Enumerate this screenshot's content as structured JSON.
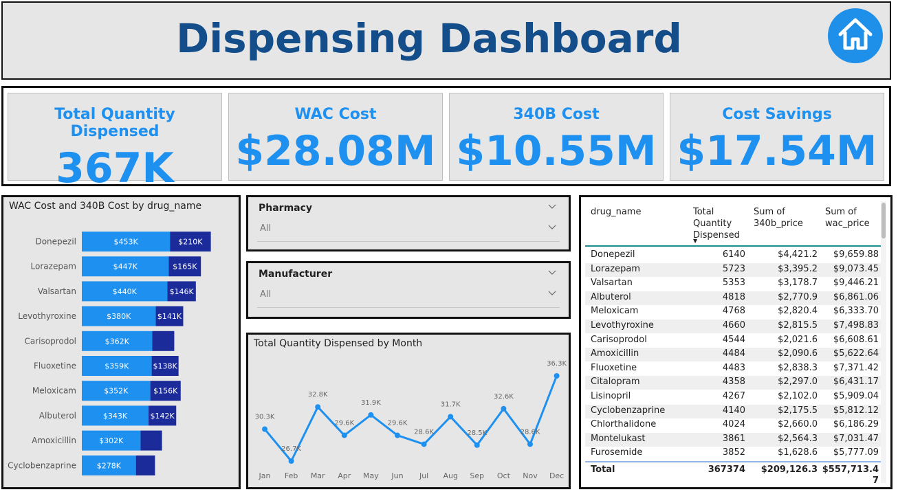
{
  "header": {
    "title": "Dispensing Dashboard",
    "home_icon": "home-icon"
  },
  "kpis": [
    {
      "label": "Total Quantity Dispensed",
      "value": "367K"
    },
    {
      "label": "WAC Cost",
      "value": "$28.08M"
    },
    {
      "label": "340B Cost",
      "value": "$10.55M"
    },
    {
      "label": "Cost Savings",
      "value": "$17.54M"
    }
  ],
  "colors": {
    "wac": "#1e90f0",
    "cost340b": "#1c2b9a",
    "line": "#1e90f0",
    "title": "#134e8a"
  },
  "slicers": [
    {
      "label": "Pharmacy",
      "value": "All"
    },
    {
      "label": "Manufacturer",
      "value": "All"
    }
  ],
  "chart_data": [
    {
      "type": "bar",
      "stacked": true,
      "orientation": "horizontal",
      "title": "WAC Cost and 340B Cost by drug_name",
      "categories": [
        "Donepezil",
        "Lorazepam",
        "Valsartan",
        "Levothyroxine",
        "Carisoprodol",
        "Fluoxetine",
        "Meloxicam",
        "Albuterol",
        "Amoxicillin",
        "Cyclobenzaprine"
      ],
      "series": [
        {
          "values": [
            453,
            447,
            440,
            380,
            362,
            359,
            352,
            343,
            302,
            278
          ],
          "labels": [
            "$453K",
            "$447K",
            "$440K",
            "$380K",
            "$362K",
            "$359K",
            "$352K",
            "$343K",
            "$302K",
            "$278K"
          ]
        },
        {
          "values": [
            210,
            165,
            146,
            141,
            113,
            138,
            156,
            142,
            110,
            98
          ],
          "labels": [
            "$210K",
            "$165K",
            "$146K",
            "$141K",
            "",
            "$138K",
            "$156K",
            "$142K",
            "",
            ""
          ]
        }
      ]
    },
    {
      "type": "line",
      "title": "Total Quantity Dispensed by Month",
      "categories": [
        "Jan",
        "Feb",
        "Mar",
        "Apr",
        "May",
        "Jun",
        "Jul",
        "Aug",
        "Sep",
        "Oct",
        "Nov",
        "Dec"
      ],
      "values": [
        30.3,
        26.7,
        32.8,
        29.6,
        31.9,
        29.6,
        28.6,
        31.7,
        28.5,
        32.6,
        28.6,
        36.3
      ],
      "labels": [
        "30.3K",
        "26.7K",
        "32.8K",
        "29.6K",
        "31.9K",
        "29.6K",
        "28.6K",
        "31.7K",
        "28.5K",
        "32.6K",
        "28.6K",
        "36.3K"
      ],
      "ylim": [
        26.7,
        36.3
      ]
    }
  ],
  "table": {
    "columns": [
      "drug_name",
      "Total Quantity Dispensed",
      "Sum of 340b_price",
      "Sum of wac_price"
    ],
    "sort_indicator": "▼",
    "rows": [
      [
        "Donepezil",
        "6140",
        "$4,421.2",
        "$9,659.88"
      ],
      [
        "Lorazepam",
        "5723",
        "$3,395.2",
        "$9,073.45"
      ],
      [
        "Valsartan",
        "5353",
        "$3,178.7",
        "$9,446.21"
      ],
      [
        "Albuterol",
        "4818",
        "$2,770.9",
        "$6,861.06"
      ],
      [
        "Meloxicam",
        "4768",
        "$2,820.4",
        "$6,333.70"
      ],
      [
        "Levothyroxine",
        "4660",
        "$2,815.5",
        "$7,498.83"
      ],
      [
        "Carisoprodol",
        "4544",
        "$2,021.6",
        "$6,608.61"
      ],
      [
        "Amoxicillin",
        "4484",
        "$2,090.6",
        "$5,622.64"
      ],
      [
        "Fluoxetine",
        "4483",
        "$2,838.3",
        "$7,371.42"
      ],
      [
        "Citalopram",
        "4358",
        "$2,297.0",
        "$6,431.17"
      ],
      [
        "Lisinopril",
        "4267",
        "$2,102.0",
        "$5,909.04"
      ],
      [
        "Cyclobenzaprine",
        "4140",
        "$2,175.5",
        "$5,812.12"
      ],
      [
        "Chlorthalidone",
        "4024",
        "$2,660.0",
        "$6,186.29"
      ],
      [
        "Montelukast",
        "3861",
        "$2,564.3",
        "$7,031.47"
      ],
      [
        "Furosemide",
        "3852",
        "$1,628.6",
        "$5,777.09"
      ]
    ],
    "total": [
      "Total",
      "367374",
      "$209,126.3",
      "$557,713.47"
    ]
  }
}
